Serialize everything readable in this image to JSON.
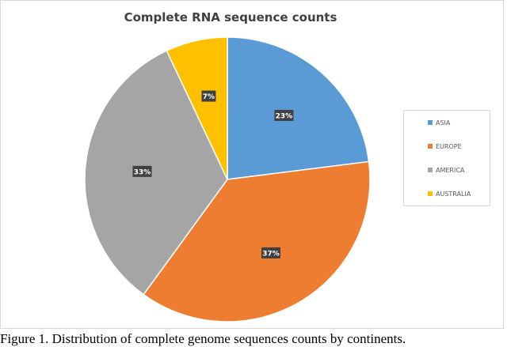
{
  "chart_data": {
    "type": "pie",
    "title": "Complete RNA sequence counts",
    "categories": [
      "ASIA",
      "EUROPE",
      "AMERICA",
      "AUSTRALIA"
    ],
    "values": [
      23,
      37,
      33,
      7
    ],
    "data_labels": [
      "23%",
      "37%",
      "33%",
      "7%"
    ],
    "colors": [
      "#5b9bd5",
      "#ed7d31",
      "#a5a5a5",
      "#ffc000"
    ],
    "start_angle": "12 o'clock",
    "direction": "clockwise",
    "legend": "right"
  },
  "caption": "Figure 1. Distribution of complete genome sequences counts by continents."
}
